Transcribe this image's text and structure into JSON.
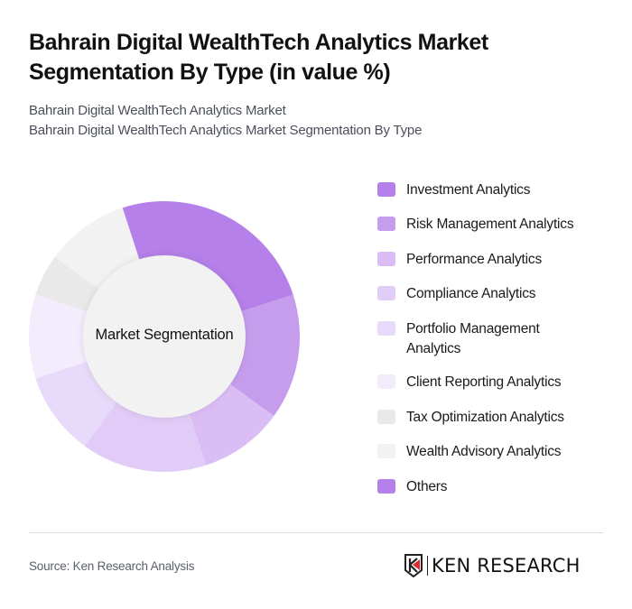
{
  "header": {
    "title": "Bahrain Digital WealthTech Analytics Market Segmentation By Type (in value %)",
    "subtitle_line1": "Bahrain Digital WealthTech Analytics Market",
    "subtitle_line2": "Bahrain Digital WealthTech Analytics Market Segmentation By Type"
  },
  "chart": {
    "center_label": "Market Segmentation"
  },
  "chart_data": {
    "type": "pie",
    "variant": "donut",
    "title": "Bahrain Digital WealthTech Analytics Market Segmentation By Type (in value %)",
    "center_label": "Market Segmentation",
    "start_angle_deg": 342,
    "categories": [
      "Investment Analytics",
      "Risk Management Analytics",
      "Performance Analytics",
      "Compliance Analytics",
      "Portfolio Management Analytics",
      "Client Reporting Analytics",
      "Tax Optimization Analytics",
      "Wealth Advisory Analytics",
      "Others"
    ],
    "values": [
      25,
      15,
      10,
      15,
      10,
      10,
      5,
      10,
      0
    ],
    "colors": [
      "#b580e9",
      "#c69ded",
      "#dbbdf5",
      "#e1cbf7",
      "#e8dafa",
      "#f3ecfc",
      "#e9e9e9",
      "#f2f2f2",
      "#b580e9"
    ],
    "legend_position": "right",
    "units": "%"
  },
  "legend": {
    "items": [
      {
        "label": "Investment Analytics",
        "color": "#b580e9"
      },
      {
        "label": "Risk Management Analytics",
        "color": "#c69ded"
      },
      {
        "label": "Performance Analytics",
        "color": "#dbbdf5"
      },
      {
        "label": "Compliance Analytics",
        "color": "#e1cbf7"
      },
      {
        "label": "Portfolio Management Analytics",
        "color": "#e8dafa"
      },
      {
        "label": "Client Reporting Analytics",
        "color": "#f3ecfc"
      },
      {
        "label": "Tax Optimization Analytics",
        "color": "#e9e9e9"
      },
      {
        "label": "Wealth Advisory Analytics",
        "color": "#f2f2f2"
      },
      {
        "label": "Others",
        "color": "#b580e9"
      }
    ]
  },
  "footer": {
    "source": "Source: Ken Research Analysis",
    "logo_text": "KEN RESEARCH",
    "logo_icon": "ken-research-logo-icon"
  }
}
